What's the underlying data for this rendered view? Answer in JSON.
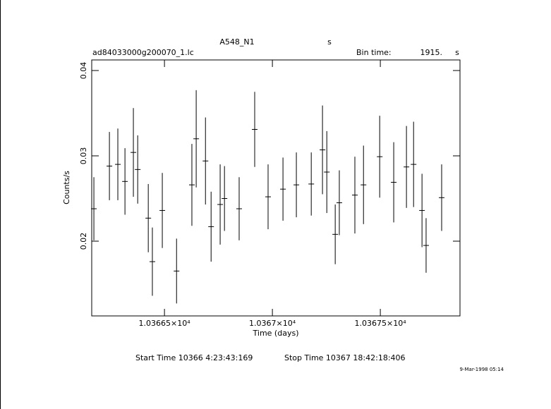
{
  "chart_data": {
    "type": "errorbar",
    "title": "A548_N1",
    "title_unit": "s",
    "subtitle": "ad84033000g200070_1.lc",
    "bin_time_label": "Bin time:",
    "bin_time": "1915.",
    "bin_time_unit": "s",
    "xlabel": "Time (days)",
    "ylabel": "Counts/s",
    "start_time": "Start Time 10366  4:23:43:169",
    "stop_time": "Stop Time 10367 18:42:18:406",
    "date_stamp": "9-Mar-1998 05:14",
    "color": "#000000",
    "xlim": [
      10366.163,
      10367.869
    ],
    "ylim": [
      0.01124,
      0.04124
    ],
    "xticks": [
      {
        "value": 10366.5,
        "label": "1.03665×10⁴"
      },
      {
        "value": 10367,
        "label": "1.0367×10⁴"
      },
      {
        "value": 10367.5,
        "label": "1.03675×10⁴"
      }
    ],
    "yticks": [
      0.02,
      0.03,
      0.04
    ],
    "x": [
      10366.173,
      10366.245,
      10366.284,
      10366.317,
      10366.356,
      10366.376,
      10366.425,
      10366.444,
      10366.49,
      10366.556,
      10366.627,
      10366.647,
      10366.69,
      10366.716,
      10366.758,
      10366.778,
      10366.846,
      10366.918,
      10366.98,
      10367.049,
      10367.111,
      10367.18,
      10367.232,
      10367.252,
      10367.291,
      10367.31,
      10367.382,
      10367.422,
      10367.497,
      10367.562,
      10367.621,
      10367.654,
      10367.693,
      10367.712,
      10367.784
    ],
    "values": [
      0.0238,
      0.0288,
      0.029,
      0.027,
      0.0304,
      0.0284,
      0.0227,
      0.0176,
      0.0236,
      0.0165,
      0.0266,
      0.032,
      0.0294,
      0.0217,
      0.0243,
      0.025,
      0.0238,
      0.0331,
      0.0252,
      0.0261,
      0.0266,
      0.0267,
      0.0307,
      0.0281,
      0.0208,
      0.0245,
      0.0254,
      0.0266,
      0.0299,
      0.0269,
      0.0287,
      0.029,
      0.0236,
      0.0195,
      0.0251
    ],
    "errors": [
      0.0037,
      0.004,
      0.0042,
      0.0039,
      0.0052,
      0.004,
      0.004,
      0.004,
      0.0044,
      0.0038,
      0.0048,
      0.0057,
      0.0051,
      0.0041,
      0.0047,
      0.0038,
      0.0037,
      0.0044,
      0.0038,
      0.0037,
      0.0038,
      0.0037,
      0.0052,
      0.0048,
      0.0035,
      0.0038,
      0.0045,
      0.0046,
      0.0048,
      0.0047,
      0.0048,
      0.005,
      0.0043,
      0.0032,
      0.0039
    ]
  }
}
